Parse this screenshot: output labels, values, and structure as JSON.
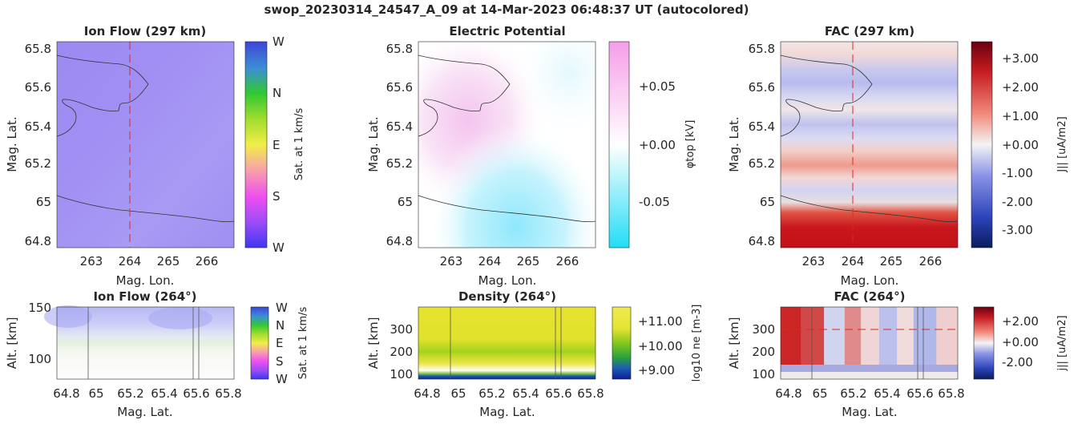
{
  "figure": {
    "title": "swop_20230314_24547_A_09 at 14-Mar-2023 06:48:37 UT (autocolored)"
  },
  "panels": {
    "ion_flow_map": {
      "title": "Ion Flow (297 km)",
      "xlabel": "Mag. Lon.",
      "ylabel": "Mag. Lat.",
      "x_ticks": [
        "263",
        "264",
        "265",
        "266"
      ],
      "y_ticks": [
        "65.8",
        "65.6",
        "65.4",
        "65.2",
        "65",
        "64.8"
      ],
      "colorbar_label": "Sat. at 1 km/s",
      "colorbar_ticks": [
        "W",
        "N",
        "E",
        "S",
        "W"
      ]
    },
    "potential_map": {
      "title": "Electric Potential",
      "xlabel": "Mag. Lon.",
      "ylabel": "Mag. Lat.",
      "x_ticks": [
        "263",
        "264",
        "265",
        "266"
      ],
      "y_ticks": [
        "65.8",
        "65.6",
        "65.4",
        "65.2",
        "65",
        "64.8"
      ],
      "colorbar_label": "φtop [kV]",
      "colorbar_ticks": [
        "+0.05",
        "+0.00",
        "-0.05"
      ]
    },
    "fac_map": {
      "title": "FAC (297 km)",
      "xlabel": "Mag. Lon.",
      "ylabel": "Mag. Lat.",
      "x_ticks": [
        "263",
        "264",
        "265",
        "266"
      ],
      "y_ticks": [
        "65.8",
        "65.6",
        "65.4",
        "65.2",
        "65",
        "64.8"
      ],
      "colorbar_label": "J|| [uA/m2]",
      "colorbar_ticks": [
        "+3.00",
        "+2.00",
        "+1.00",
        "+0.00",
        "-1.00",
        "-2.00",
        "-3.00"
      ]
    },
    "ion_flow_alt": {
      "title": "Ion Flow (264°)",
      "xlabel": "Mag. Lat.",
      "ylabel": "Alt. [km]",
      "x_ticks": [
        "64.8",
        "65",
        "65.2",
        "65.4",
        "65.6",
        "65.8"
      ],
      "y_ticks": [
        "150",
        "100"
      ],
      "colorbar_label": "Sat. at 1 km/s",
      "colorbar_ticks": [
        "W",
        "N",
        "E",
        "S",
        "W"
      ]
    },
    "density_alt": {
      "title": "Density (264°)",
      "xlabel": "Mag. Lat.",
      "ylabel": "Alt. [km]",
      "x_ticks": [
        "64.8",
        "65",
        "65.2",
        "65.4",
        "65.6",
        "65.8"
      ],
      "y_ticks": [
        "300",
        "200",
        "100"
      ],
      "colorbar_label": "log10 ne [m-3]",
      "colorbar_ticks": [
        "+11.00",
        "+10.00",
        "+9.00"
      ]
    },
    "fac_alt": {
      "title": "FAC (264°)",
      "xlabel": "Mag. Lat.",
      "ylabel": "Alt. [km]",
      "x_ticks": [
        "64.8",
        "65",
        "65.2",
        "65.4",
        "65.6",
        "65.8"
      ],
      "y_ticks": [
        "300",
        "200",
        "100"
      ],
      "colorbar_label": "j|| [uA/m2]",
      "colorbar_ticks": [
        "+2.00",
        "+0.00",
        "-2.00"
      ]
    }
  },
  "chart_data": [
    {
      "type": "heatmap",
      "title": "Ion Flow (297 km)",
      "xlabel": "Mag. Lon.",
      "ylabel": "Mag. Lat.",
      "xlim": [
        262.2,
        266.7
      ],
      "ylim": [
        64.76,
        65.84
      ],
      "colormap": "cyclic W-N-E-S-W",
      "colorbar_ticks": [
        "W",
        "N",
        "E",
        "S",
        "W"
      ],
      "dominant_value": "between S and W (purple)",
      "meridian_cut_lon": 264
    },
    {
      "type": "heatmap",
      "title": "Electric Potential",
      "xlabel": "Mag. Lon.",
      "ylabel": "Mag. Lat.",
      "xlim": [
        262.2,
        266.7
      ],
      "ylim": [
        64.76,
        65.84
      ],
      "colorbar_label": "phi_top [kV]",
      "colorbar_range": [
        -0.085,
        0.085
      ],
      "colorbar_ticks": [
        0.05,
        0.0,
        -0.05
      ],
      "features": [
        {
          "region": "lat 65.35-65.6, lon 262.5-265",
          "value_kV": 0.05
        },
        {
          "region": "lat 64.8-65.1, lon 263.5-266.5",
          "value_kV": -0.06
        }
      ]
    },
    {
      "type": "heatmap",
      "title": "FAC (297 km)",
      "xlabel": "Mag. Lon.",
      "ylabel": "Mag. Lat.",
      "xlim": [
        262.2,
        266.7
      ],
      "ylim": [
        64.76,
        65.84
      ],
      "colorbar_label": "J_|| [uA/m^2]",
      "colorbar_range": [
        -3.6,
        3.6
      ],
      "colorbar_ticks": [
        3,
        2,
        1,
        0,
        -1,
        -2,
        -3
      ],
      "latitude_bands": [
        {
          "lat": 65.8,
          "value": 0.5
        },
        {
          "lat": 65.62,
          "value": -1.2
        },
        {
          "lat": 65.52,
          "value": 0.3
        },
        {
          "lat": 65.42,
          "value": -1.0
        },
        {
          "lat": 65.3,
          "value": 0.4
        },
        {
          "lat": 65.2,
          "value": 1.4
        },
        {
          "lat": 65.1,
          "value": -0.7
        },
        {
          "lat": 64.95,
          "value": 2.6
        },
        {
          "lat": 64.82,
          "value": 3.2
        }
      ],
      "meridian_cut_lon": 264
    },
    {
      "type": "heatmap",
      "title": "Ion Flow (264°)",
      "xlabel": "Mag. Lat.",
      "ylabel": "Alt. [km]",
      "xlim": [
        64.76,
        65.84
      ],
      "ylim": [
        80,
        150
      ],
      "features": [
        {
          "alt_range": [
            125,
            150
          ],
          "color_label": "between S and W"
        },
        {
          "alt_range": [
            110,
            125
          ],
          "color_label": "N"
        },
        {
          "alt_range": [
            80,
            110
          ],
          "color_label": "saturated (white)"
        }
      ],
      "vertical_lines_lat": [
        64.95,
        65.62,
        65.65
      ]
    },
    {
      "type": "heatmap",
      "title": "Density (264°)",
      "xlabel": "Mag. Lat.",
      "ylabel": "Alt. [km]",
      "xlim": [
        64.76,
        65.84
      ],
      "ylim": [
        90,
        390
      ],
      "colorbar_label": "log10 n_e [m^-3]",
      "colorbar_range": [
        8.7,
        11.4
      ],
      "colorbar_ticks": [
        11,
        10,
        9
      ],
      "altitude_profile": [
        {
          "alt": 390,
          "value": 11.0
        },
        {
          "alt": 300,
          "value": 11.0
        },
        {
          "alt": 200,
          "value": 10.3
        },
        {
          "alt": 150,
          "value": 10.6
        },
        {
          "alt": 120,
          "value": 11.4
        },
        {
          "alt": 100,
          "value": 9.0
        }
      ],
      "vertical_lines_lat": [
        64.95,
        65.62,
        65.65
      ]
    },
    {
      "type": "heatmap",
      "title": "FAC (264°)",
      "xlabel": "Mag. Lat.",
      "ylabel": "Alt. [km]",
      "xlim": [
        64.76,
        65.84
      ],
      "ylim": [
        90,
        390
      ],
      "colorbar_label": "j_|| [uA/m^2]",
      "colorbar_range": [
        -3.2,
        3.2
      ],
      "colorbar_ticks": [
        2,
        0,
        -2
      ],
      "latitude_profile": [
        {
          "lat": 64.82,
          "value": 3.0
        },
        {
          "lat": 64.95,
          "value": 2.5
        },
        {
          "lat": 65.1,
          "value": -0.6
        },
        {
          "lat": 65.2,
          "value": 1.5
        },
        {
          "lat": 65.3,
          "value": 0.4
        },
        {
          "lat": 65.42,
          "value": -1.0
        },
        {
          "lat": 65.52,
          "value": 0.3
        },
        {
          "lat": 65.62,
          "value": -1.2
        },
        {
          "lat": 65.8,
          "value": 0.5
        }
      ],
      "cut_altitude_km": 297,
      "vertical_lines_lat": [
        64.95,
        65.62,
        65.65
      ]
    }
  ]
}
